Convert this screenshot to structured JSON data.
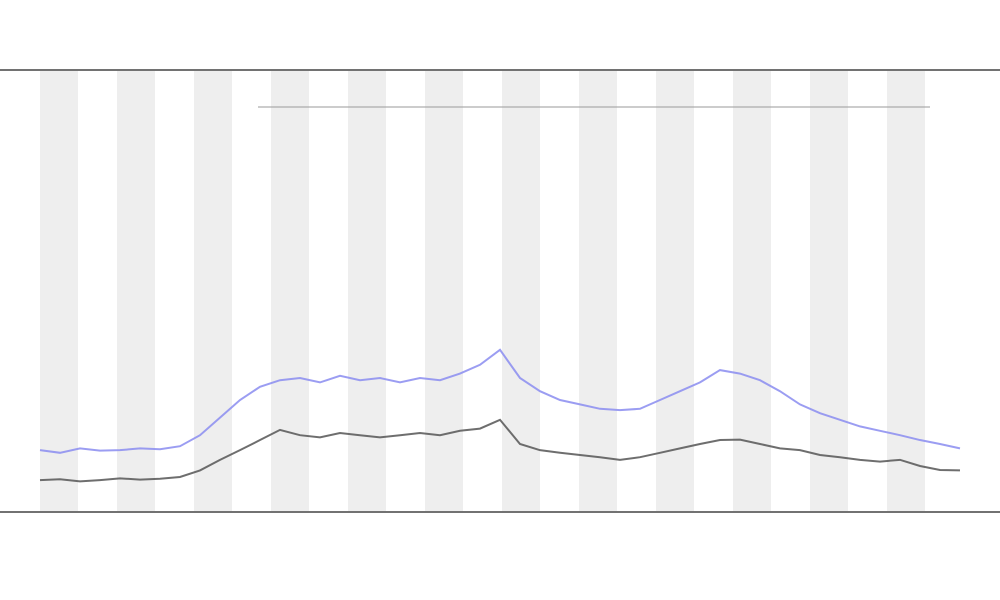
{
  "chart_data": {
    "type": "line",
    "x": [
      0,
      1,
      2,
      3,
      4,
      5,
      6,
      7,
      8,
      9,
      10,
      11,
      12,
      13,
      14,
      15,
      16,
      17,
      18,
      19,
      20,
      21,
      22,
      23,
      24,
      25,
      26,
      27,
      28,
      29,
      30,
      31,
      32,
      33,
      34,
      35,
      36,
      37,
      38,
      39,
      40,
      41,
      42,
      43,
      44,
      45,
      46
    ],
    "xlim": [
      0,
      46
    ],
    "ylim": [
      0,
      100
    ],
    "series": [
      {
        "color": "#8a8cf0",
        "values": [
          13.6,
          13,
          14,
          13.5,
          13.6,
          14,
          13.8,
          14.5,
          17,
          21,
          25,
          28,
          29.5,
          30,
          29,
          30.5,
          29.5,
          30,
          29,
          30,
          29.5,
          31,
          33,
          36.4,
          30,
          27,
          25,
          24,
          23,
          22.7,
          23,
          25,
          27,
          29,
          31.8,
          31,
          29.5,
          27,
          24,
          22,
          20.5,
          19,
          18,
          17,
          15.9,
          15,
          14
        ]
      },
      {
        "color": "#555555",
        "values": [
          6.8,
          7,
          6.5,
          6.8,
          7.2,
          6.9,
          7.1,
          7.5,
          9,
          11.4,
          13.6,
          15.9,
          18.2,
          17,
          16.5,
          17.5,
          17,
          16.5,
          17,
          17.5,
          17,
          18,
          18.5,
          20.5,
          15,
          13.6,
          13,
          12.5,
          12,
          11.4,
          12,
          13,
          14,
          15,
          15.9,
          16,
          15,
          14,
          13.6,
          12.5,
          12,
          11.4,
          11,
          11.4,
          10,
          9.1,
          9
        ]
      }
    ]
  }
}
